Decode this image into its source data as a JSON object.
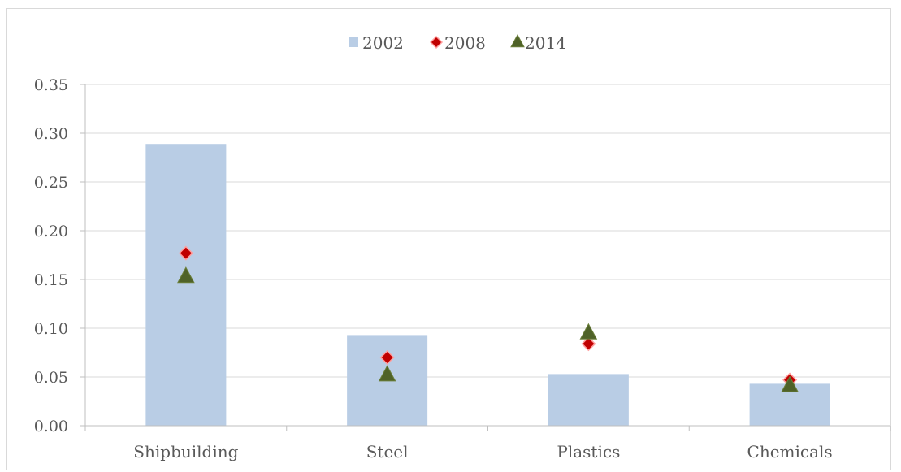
{
  "chart_data": {
    "type": "bar",
    "categories": [
      "Shipbuilding",
      "Steel",
      "Plastics",
      "Chemicals"
    ],
    "series": [
      {
        "name": "2002",
        "kind": "bar",
        "marker": "square",
        "color": "#B9CDE5",
        "values": [
          0.289,
          0.093,
          0.053,
          0.043
        ]
      },
      {
        "name": "2008",
        "kind": "marker",
        "marker": "diamond",
        "color": "#C00000",
        "values": [
          0.177,
          0.07,
          0.084,
          0.047
        ]
      },
      {
        "name": "2014",
        "kind": "marker",
        "marker": "triangle",
        "color": "#4F6228",
        "values": [
          0.154,
          0.053,
          0.096,
          0.042
        ]
      }
    ],
    "yticks": [
      "0.00",
      "0.05",
      "0.10",
      "0.15",
      "0.20",
      "0.25",
      "0.30",
      "0.35"
    ],
    "ylim": [
      0,
      0.35
    ],
    "xlabel": "",
    "ylabel": "",
    "title": "",
    "grid": true,
    "legend_position": "top-center"
  }
}
